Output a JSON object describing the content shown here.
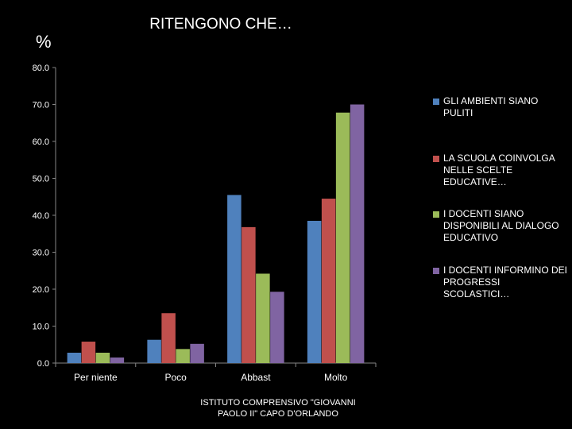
{
  "chart_data": {
    "type": "bar",
    "title": "RITENGONO CHE…",
    "ylabel": "%",
    "xlabel": "",
    "ylim": [
      0,
      80
    ],
    "yticks": [
      "0.0",
      "10.0",
      "20.0",
      "30.0",
      "40.0",
      "50.0",
      "60.0",
      "70.0",
      "80.0"
    ],
    "categories": [
      "Per niente",
      "Poco",
      "Abbast",
      "Molto"
    ],
    "series": [
      {
        "name": "GLI AMBIENTI SIANO PULITI",
        "color": "#4f81bd",
        "values": [
          2.8,
          6.3,
          45.5,
          38.5
        ]
      },
      {
        "name": "LA SCUOLA COINVOLGA NELLE SCELTE EDUCATIVE…",
        "color": "#c0504d",
        "values": [
          5.8,
          13.5,
          36.8,
          44.5
        ]
      },
      {
        "name": "I DOCENTI SIANO DISPONIBILI AL DIALOGO EDUCATIVO",
        "color": "#9bbb59",
        "values": [
          2.8,
          3.8,
          24.2,
          67.8
        ]
      },
      {
        "name": "I DOCENTI INFORMINO DEI PROGRESSI SCOLASTICI…",
        "color": "#8064a2",
        "values": [
          1.5,
          5.2,
          19.3,
          70.0
        ]
      }
    ],
    "grid": false,
    "legend_position": "right"
  },
  "footer": "ISTITUTO COMPRENSIVO \"GIOVANNI PAOLO II\" CAPO D'ORLANDO"
}
